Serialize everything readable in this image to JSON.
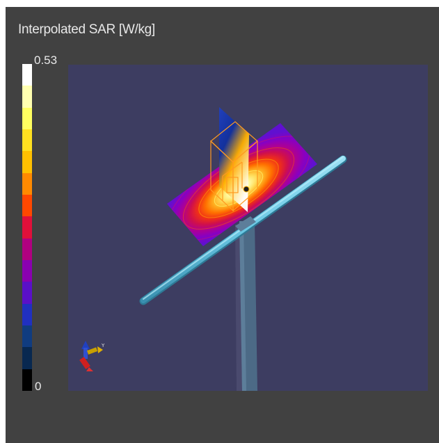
{
  "colorbar": {
    "title": "Interpolated SAR [W/kg]",
    "max_label": "0.53",
    "min_label": "0",
    "colors_top_to_bottom": [
      "#ffffff",
      "#ffffb0",
      "#ffff60",
      "#ffe020",
      "#ffc000",
      "#ff8a00",
      "#ff4800",
      "#e0103a",
      "#b00080",
      "#8a00b0",
      "#5a10c8",
      "#2030c0",
      "#103c80",
      "#082850",
      "#000000"
    ]
  },
  "scene": {
    "background": "#3d3d61",
    "ground_shadow": "#4a4a6e",
    "antenna_color": "#6ac8e4",
    "mast_color": "#4c6a86",
    "field_plane": "sar-field-colormap",
    "vertical_plane": "sar-vertical-colormap",
    "axis_triad": {
      "x": "#d02020",
      "y": "#c8a000",
      "z": "#2040c0",
      "y_label": "Y"
    }
  }
}
